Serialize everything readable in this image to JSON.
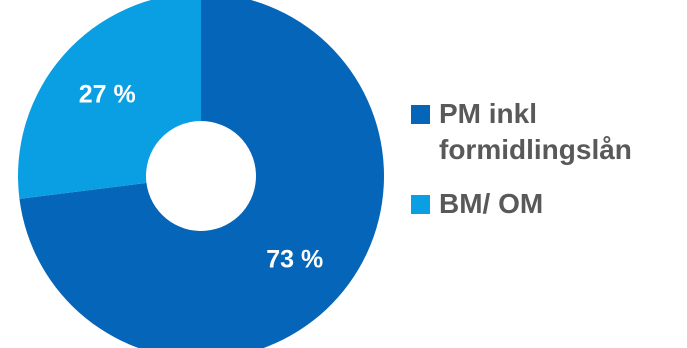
{
  "chart_data": {
    "type": "pie",
    "donut": true,
    "categories": [
      "PM inkl formidlingslån",
      "BM/ OM"
    ],
    "values": [
      73,
      27
    ],
    "data_labels": [
      "73 %",
      "27 %"
    ],
    "colors": [
      "#0565b8",
      "#0a9ee3"
    ],
    "legend_placement": "right",
    "title": ""
  },
  "legend": {
    "items": [
      {
        "line1": "PM inkl",
        "line2": "formidlingslån",
        "color": "#0565b8"
      },
      {
        "line1": "BM/ OM",
        "line2": "",
        "color": "#0a9ee3"
      }
    ]
  }
}
